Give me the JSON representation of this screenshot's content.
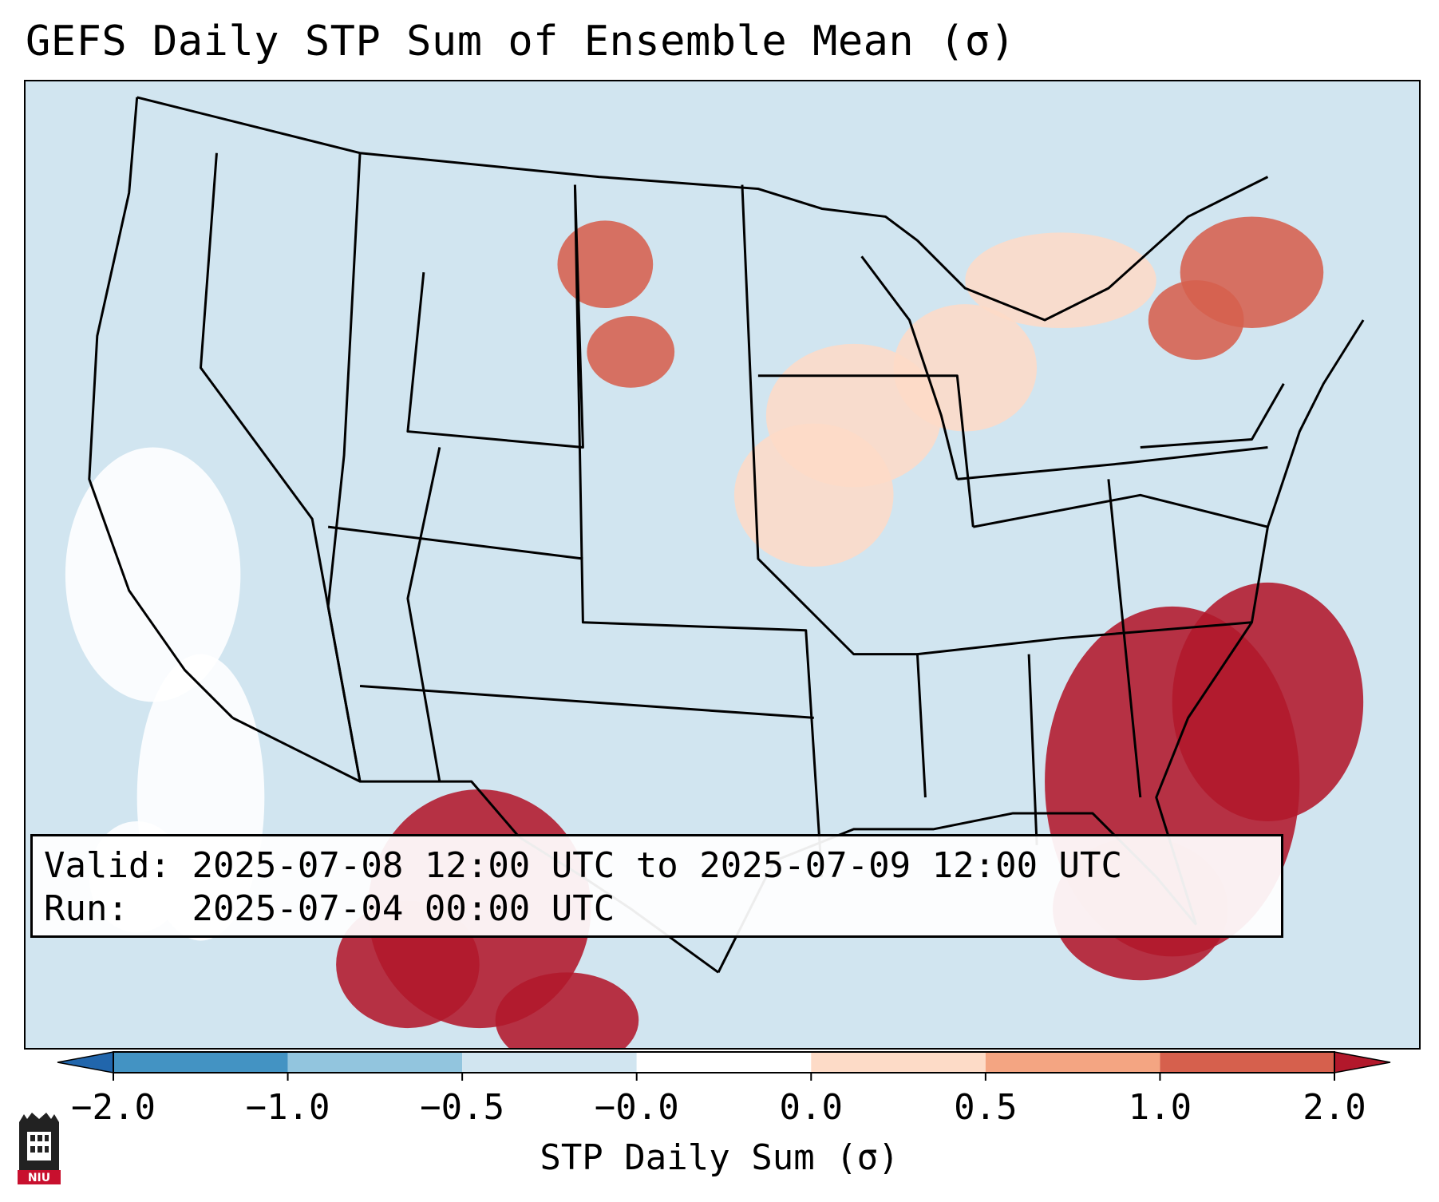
{
  "title": "GEFS Daily STP Sum of Ensemble Mean (σ)",
  "info": {
    "valid_label": "Valid:",
    "valid_value": "2025-07-08 12:00 UTC to 2025-07-09 12:00 UTC",
    "run_label": "Run:",
    "run_value": "2025-07-04 00:00 UTC"
  },
  "map": {
    "background_color": "#d1e5f0",
    "land_region": "CONUS",
    "anomaly_regions": [
      {
        "name": "southeast-coast-atlantic",
        "value": 2.0,
        "level": "strong-positive"
      },
      {
        "name": "mexico-sierra-madre",
        "value": 2.0,
        "level": "strong-positive"
      },
      {
        "name": "northern-great-plains",
        "value": 1.5,
        "level": "positive"
      },
      {
        "name": "new-england",
        "value": 1.0,
        "level": "positive"
      },
      {
        "name": "upper-midwest",
        "value": 0.3,
        "level": "weak-positive"
      },
      {
        "name": "west-coast-offshore",
        "value": -0.2,
        "level": "near-zero"
      }
    ]
  },
  "colorbar": {
    "label": "STP Daily Sum (σ)",
    "ticks": [
      "−2.0",
      "−1.0",
      "−0.5",
      "−0.0",
      "0.0",
      "0.5",
      "1.0",
      "2.0"
    ],
    "bin_colors": [
      "#4393c3",
      "#92c5de",
      "#d1e5f0",
      "#ffffff",
      "#fddbc7",
      "#f4a582",
      "#d6604d"
    ],
    "under_color": "#2166ac",
    "over_color": "#b2182b"
  },
  "logo": {
    "text": "NIU"
  }
}
